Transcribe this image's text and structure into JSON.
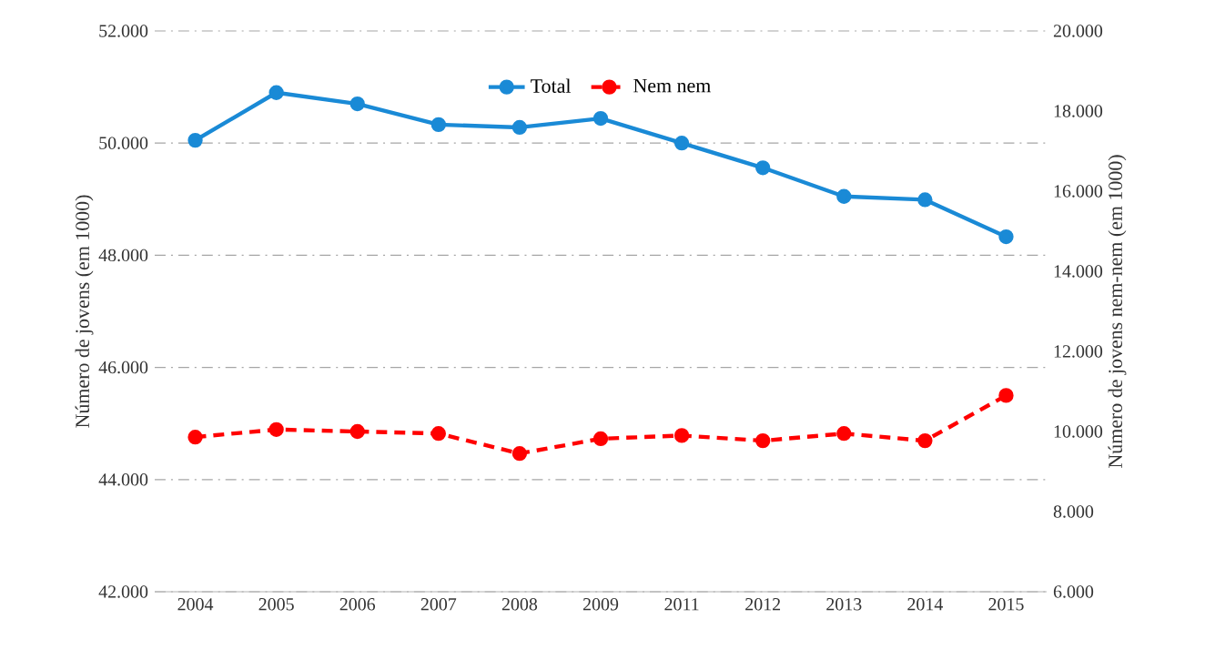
{
  "chart_data": {
    "type": "line",
    "categories": [
      "2004",
      "2005",
      "2006",
      "2007",
      "2008",
      "2009",
      "2011",
      "2012",
      "2013",
      "2014",
      "2015"
    ],
    "series": [
      {
        "name": "Total",
        "color": "#1a8ad6",
        "line_style": "solid",
        "values": [
          50050,
          50900,
          50700,
          50330,
          50280,
          50440,
          50000,
          49560,
          49050,
          48990,
          48330
        ]
      },
      {
        "name": "Nem nem",
        "color": "#ff0000",
        "line_style": "dashed",
        "axis": "y2",
        "values": [
          9860,
          10050,
          10000,
          9950,
          9450,
          9820,
          9900,
          9770,
          9950,
          9770,
          10900
        ]
      }
    ],
    "ylabel": "Número de jovens (em 1000)",
    "y2label": "Número de jovens nem-nem (em 1000)",
    "ylim": [
      42000,
      52000
    ],
    "yticks": [
      {
        "value": 42000,
        "label": "42.000"
      },
      {
        "value": 44000,
        "label": "44.000"
      },
      {
        "value": 46000,
        "label": "46.000"
      },
      {
        "value": 48000,
        "label": "48.000"
      },
      {
        "value": 50000,
        "label": "50.000"
      },
      {
        "value": 52000,
        "label": "52.000"
      }
    ],
    "y2lim": [
      6000,
      20000
    ],
    "y2ticks": [
      {
        "value": 6000,
        "label": "6.000"
      },
      {
        "value": 8000,
        "label": "8.000"
      },
      {
        "value": 10000,
        "label": "10.000"
      },
      {
        "value": 12000,
        "label": "12.000"
      },
      {
        "value": 14000,
        "label": "14.000"
      },
      {
        "value": 16000,
        "label": "16.000"
      },
      {
        "value": 18000,
        "label": "18.000"
      },
      {
        "value": 20000,
        "label": "20.000"
      }
    ],
    "grid": "y",
    "legend": "top",
    "marker": "circle"
  }
}
